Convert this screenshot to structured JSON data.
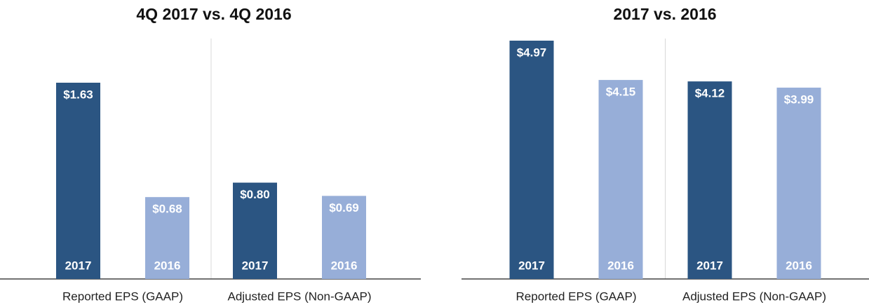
{
  "charts": [
    {
      "chart_data": {
        "type": "bar",
        "title": "4Q 2017 vs. 4Q 2016",
        "categories": [
          "Reported EPS (GAAP)",
          "Adjusted EPS (Non-GAAP)"
        ],
        "series": [
          {
            "name": "2017",
            "color": "#2b5582",
            "values": [
              1.63,
              0.8
            ],
            "value_labels": [
              "$1.63",
              "$0.80"
            ]
          },
          {
            "name": "2016",
            "color": "#97aed8",
            "values": [
              0.68,
              0.69
            ],
            "value_labels": [
              "$0.68",
              "$0.69"
            ]
          }
        ]
      }
    },
    {
      "chart_data": {
        "type": "bar",
        "title": "2017 vs. 2016",
        "categories": [
          "Reported EPS (GAAP)",
          "Adjusted EPS (Non-GAAP)"
        ],
        "series": [
          {
            "name": "2017",
            "color": "#2b5582",
            "values": [
              4.97,
              4.12
            ],
            "value_labels": [
              "$4.97",
              "$4.12"
            ]
          },
          {
            "name": "2016",
            "color": "#97aed8",
            "values": [
              4.15,
              3.99
            ],
            "value_labels": [
              "$4.15",
              "$3.99"
            ]
          }
        ]
      }
    }
  ]
}
